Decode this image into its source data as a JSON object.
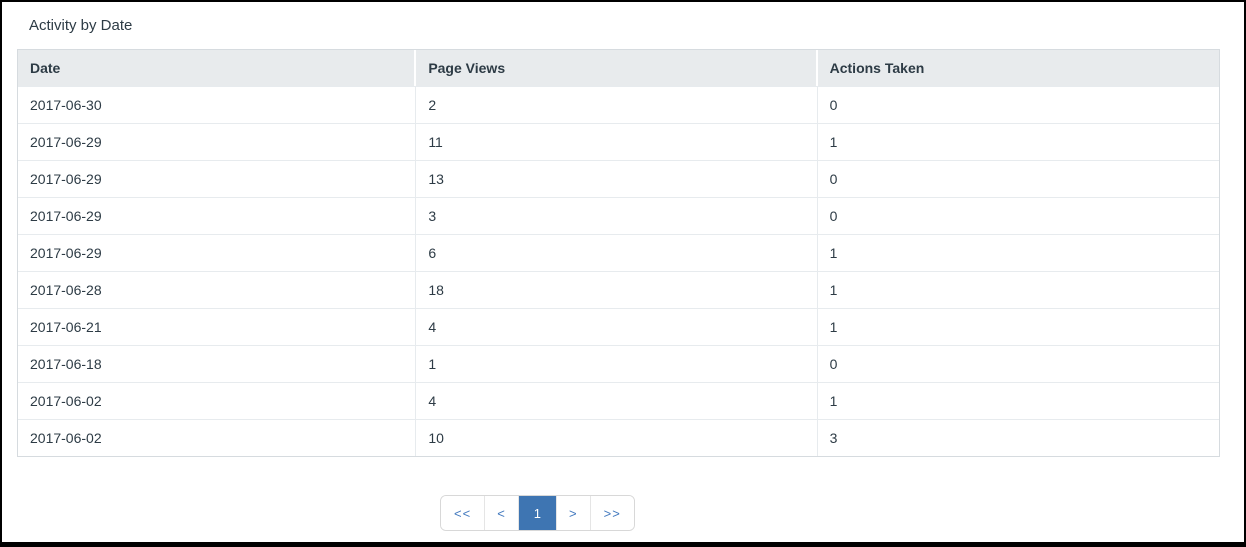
{
  "page": {
    "title": "Activity by Date"
  },
  "table": {
    "columns": [
      "Date",
      "Page Views",
      "Actions Taken"
    ],
    "rows": [
      [
        "2017-06-30",
        "2",
        "0"
      ],
      [
        "2017-06-29",
        "11",
        "1"
      ],
      [
        "2017-06-29",
        "13",
        "0"
      ],
      [
        "2017-06-29",
        "3",
        "0"
      ],
      [
        "2017-06-29",
        "6",
        "1"
      ],
      [
        "2017-06-28",
        "18",
        "1"
      ],
      [
        "2017-06-21",
        "4",
        "1"
      ],
      [
        "2017-06-18",
        "1",
        "0"
      ],
      [
        "2017-06-02",
        "4",
        "1"
      ],
      [
        "2017-06-02",
        "10",
        "3"
      ]
    ]
  },
  "pagination": {
    "first_label": "<<",
    "prev_label": "<",
    "current_page": "1",
    "next_label": ">",
    "last_label": ">>"
  },
  "colors": {
    "accent_blue": "#3e75b2",
    "link_blue": "#4178be",
    "header_bg": "#e8ebed",
    "text": "#2d3b45"
  }
}
